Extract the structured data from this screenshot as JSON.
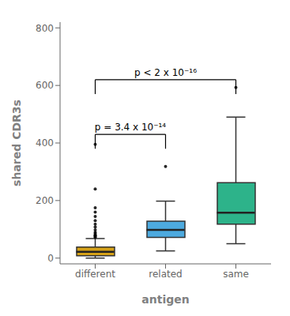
{
  "chart_data": {
    "type": "box",
    "categories": [
      "different",
      "related",
      "same"
    ],
    "xlabel": "antigen",
    "ylabel": "shared CDR3s",
    "colors": [
      "#D4A017",
      "#4DAADF",
      "#2DB38A"
    ],
    "ylim": [
      -20,
      820
    ],
    "yticks": [
      0,
      200,
      400,
      600,
      800
    ],
    "grid": false,
    "boxes": [
      {
        "q1": 8,
        "median": 22,
        "q3": 38,
        "whislo": 0,
        "whishi": 68,
        "fliers": [
          240,
          395,
          175,
          160,
          145,
          130,
          118,
          108,
          98,
          90,
          85,
          80,
          78,
          75,
          72
        ]
      },
      {
        "q1": 72,
        "median": 98,
        "q3": 128,
        "whislo": 25,
        "whishi": 198,
        "fliers": [
          318
        ]
      },
      {
        "q1": 118,
        "median": 158,
        "q3": 262,
        "whislo": 50,
        "whishi": 490,
        "fliers": [
          593
        ]
      }
    ],
    "annotations": [
      {
        "text": "p = 3.4 x 10⁻¹⁴",
        "x1": "different",
        "x2": "related",
        "y": 430,
        "y_tip": 380
      },
      {
        "text": "p < 2 x 10⁻¹⁶",
        "x1": "different",
        "x2": "same",
        "y": 620,
        "y_tip": 570
      }
    ]
  }
}
